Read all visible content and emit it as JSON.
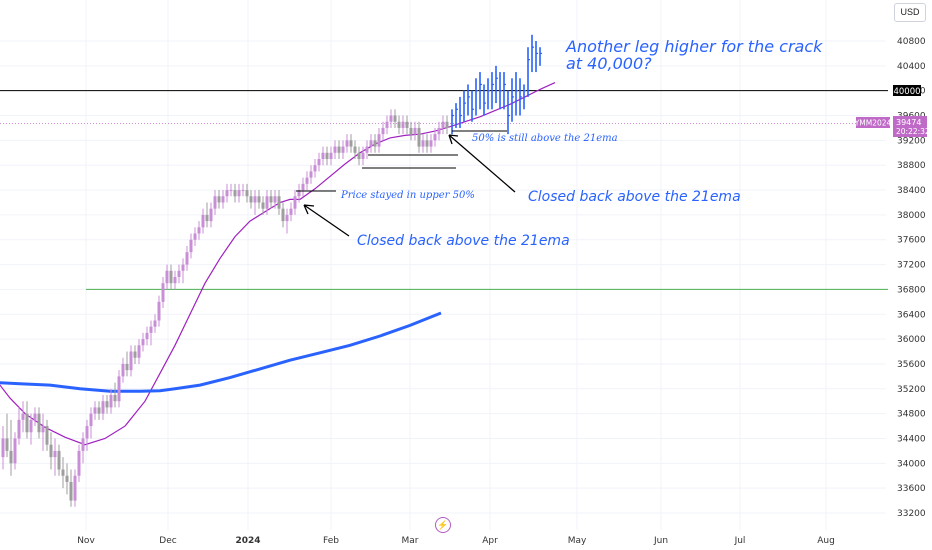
{
  "currency": "USD",
  "chart_data": {
    "type": "candlestick",
    "symbol": "YMM2024",
    "last_price": "39474",
    "countdown": "20:22:32",
    "y_ticks": [
      40800,
      40400,
      40000,
      39600,
      39200,
      38800,
      38400,
      38000,
      37600,
      37200,
      36800,
      36400,
      36000,
      35600,
      35200,
      34800,
      34400,
      34000,
      33600,
      33200
    ],
    "ylim": [
      33000,
      41200
    ],
    "x_labels": [
      "Nov",
      "Dec",
      "2024",
      "Feb",
      "Mar",
      "Apr",
      "May",
      "Jun",
      "Jul",
      "Aug"
    ],
    "bold_x_labels": [
      "2024"
    ],
    "horizontal_levels": [
      {
        "value": 40000,
        "color": "#000000",
        "label": "40000"
      },
      {
        "value": 36800,
        "color": "#4caf50",
        "label": ""
      }
    ],
    "annotations": [
      "Another leg higher for the crack",
      "at 40,000?",
      "50% is still above the 21ema",
      "Closed back above the 21ema",
      "Price stayed in upper 50%",
      "Closed back above the 21ema"
    ],
    "series": [
      {
        "name": "21ema",
        "color": "#a020c0",
        "points": [
          [
            -2,
            35300
          ],
          [
            10,
            35050
          ],
          [
            25,
            34800
          ],
          [
            45,
            34580
          ],
          [
            65,
            34420
          ],
          [
            85,
            34300
          ],
          [
            105,
            34400
          ],
          [
            125,
            34600
          ],
          [
            145,
            35000
          ],
          [
            160,
            35450
          ],
          [
            175,
            35900
          ],
          [
            190,
            36400
          ],
          [
            205,
            36900
          ],
          [
            220,
            37300
          ],
          [
            235,
            37650
          ],
          [
            250,
            37900
          ],
          [
            265,
            38050
          ],
          [
            280,
            38200
          ],
          [
            290,
            38250
          ],
          [
            300,
            38250
          ],
          [
            315,
            38420
          ],
          [
            330,
            38620
          ],
          [
            345,
            38820
          ],
          [
            360,
            39000
          ],
          [
            375,
            39140
          ],
          [
            390,
            39240
          ],
          [
            405,
            39280
          ],
          [
            420,
            39300
          ],
          [
            435,
            39350
          ],
          [
            450,
            39420
          ],
          [
            465,
            39500
          ],
          [
            480,
            39580
          ],
          [
            495,
            39680
          ],
          [
            510,
            39780
          ],
          [
            525,
            39900
          ],
          [
            540,
            40020
          ],
          [
            555,
            40130
          ]
        ]
      },
      {
        "name": "200ema",
        "color": "#2962ff",
        "points": [
          [
            -2,
            35300
          ],
          [
            20,
            35280
          ],
          [
            50,
            35260
          ],
          [
            80,
            35200
          ],
          [
            110,
            35160
          ],
          [
            140,
            35160
          ],
          [
            160,
            35170
          ],
          [
            175,
            35200
          ],
          [
            200,
            35260
          ],
          [
            230,
            35380
          ],
          [
            260,
            35520
          ],
          [
            290,
            35660
          ],
          [
            320,
            35780
          ],
          [
            350,
            35900
          ],
          [
            380,
            36050
          ],
          [
            410,
            36220
          ],
          [
            430,
            36350
          ],
          [
            441,
            36420
          ]
        ]
      }
    ],
    "candles": [
      {
        "x": 3,
        "o": 34100,
        "h": 34600,
        "l": 33900,
        "c": 34400
      },
      {
        "x": 7,
        "o": 34400,
        "h": 34800,
        "l": 34100,
        "c": 34200
      },
      {
        "x": 11,
        "o": 34200,
        "h": 34700,
        "l": 33800,
        "c": 34000
      },
      {
        "x": 15,
        "o": 34000,
        "h": 34500,
        "l": 33900,
        "c": 34400
      },
      {
        "x": 19,
        "o": 34400,
        "h": 34900,
        "l": 34300,
        "c": 34700
      },
      {
        "x": 23,
        "o": 34700,
        "h": 35000,
        "l": 34500,
        "c": 34800
      },
      {
        "x": 27,
        "o": 34800,
        "h": 35000,
        "l": 34400,
        "c": 34500
      },
      {
        "x": 31,
        "o": 34500,
        "h": 34800,
        "l": 34300,
        "c": 34700
      },
      {
        "x": 35,
        "o": 34700,
        "h": 34900,
        "l": 34600,
        "c": 34800
      },
      {
        "x": 39,
        "o": 34800,
        "h": 34900,
        "l": 34400,
        "c": 34500
      },
      {
        "x": 43,
        "o": 34500,
        "h": 34800,
        "l": 34200,
        "c": 34600
      },
      {
        "x": 47,
        "o": 34600,
        "h": 34700,
        "l": 34200,
        "c": 34300
      },
      {
        "x": 51,
        "o": 34300,
        "h": 34500,
        "l": 33900,
        "c": 34100
      },
      {
        "x": 55,
        "o": 34100,
        "h": 34400,
        "l": 33800,
        "c": 34200
      },
      {
        "x": 59,
        "o": 34200,
        "h": 34300,
        "l": 33800,
        "c": 33900
      },
      {
        "x": 63,
        "o": 33900,
        "h": 34100,
        "l": 33600,
        "c": 33800
      },
      {
        "x": 67,
        "o": 33800,
        "h": 34000,
        "l": 33500,
        "c": 33700
      },
      {
        "x": 71,
        "o": 33700,
        "h": 33900,
        "l": 33300,
        "c": 33400
      },
      {
        "x": 75,
        "o": 33400,
        "h": 33900,
        "l": 33300,
        "c": 33800
      },
      {
        "x": 79,
        "o": 33800,
        "h": 34300,
        "l": 33700,
        "c": 34200
      },
      {
        "x": 83,
        "o": 34200,
        "h": 34500,
        "l": 34000,
        "c": 34400
      },
      {
        "x": 87,
        "o": 34400,
        "h": 34700,
        "l": 34200,
        "c": 34600
      },
      {
        "x": 91,
        "o": 34600,
        "h": 34900,
        "l": 34400,
        "c": 34800
      },
      {
        "x": 95,
        "o": 34800,
        "h": 35000,
        "l": 34700,
        "c": 34900
      },
      {
        "x": 99,
        "o": 34900,
        "h": 35000,
        "l": 34700,
        "c": 34800
      },
      {
        "x": 103,
        "o": 34800,
        "h": 35100,
        "l": 34700,
        "c": 35000
      },
      {
        "x": 107,
        "o": 35000,
        "h": 35100,
        "l": 34800,
        "c": 34900
      },
      {
        "x": 111,
        "o": 34900,
        "h": 35200,
        "l": 34800,
        "c": 35100
      },
      {
        "x": 115,
        "o": 35100,
        "h": 35300,
        "l": 34900,
        "c": 35000
      },
      {
        "x": 119,
        "o": 35000,
        "h": 35500,
        "l": 34900,
        "c": 35400
      },
      {
        "x": 123,
        "o": 35400,
        "h": 35700,
        "l": 35300,
        "c": 35600
      },
      {
        "x": 127,
        "o": 35600,
        "h": 35800,
        "l": 35400,
        "c": 35500
      },
      {
        "x": 131,
        "o": 35500,
        "h": 35900,
        "l": 35400,
        "c": 35800
      },
      {
        "x": 135,
        "o": 35800,
        "h": 35900,
        "l": 35600,
        "c": 35700
      },
      {
        "x": 139,
        "o": 35700,
        "h": 36000,
        "l": 35600,
        "c": 35900
      },
      {
        "x": 143,
        "o": 35900,
        "h": 36100,
        "l": 35800,
        "c": 36000
      },
      {
        "x": 147,
        "o": 36000,
        "h": 36200,
        "l": 35900,
        "c": 36100
      },
      {
        "x": 151,
        "o": 36100,
        "h": 36300,
        "l": 35900,
        "c": 36200
      },
      {
        "x": 155,
        "o": 36200,
        "h": 36400,
        "l": 36100,
        "c": 36300
      },
      {
        "x": 159,
        "o": 36300,
        "h": 36700,
        "l": 36200,
        "c": 36600
      },
      {
        "x": 163,
        "o": 36600,
        "h": 37000,
        "l": 36500,
        "c": 36900
      },
      {
        "x": 167,
        "o": 36900,
        "h": 37200,
        "l": 36800,
        "c": 37100
      },
      {
        "x": 171,
        "o": 37100,
        "h": 37200,
        "l": 36800,
        "c": 36900
      },
      {
        "x": 175,
        "o": 36900,
        "h": 37100,
        "l": 36800,
        "c": 37000
      },
      {
        "x": 179,
        "o": 37000,
        "h": 37200,
        "l": 36900,
        "c": 37100
      },
      {
        "x": 183,
        "o": 37100,
        "h": 37300,
        "l": 36900,
        "c": 37200
      },
      {
        "x": 187,
        "o": 37200,
        "h": 37500,
        "l": 37100,
        "c": 37400
      },
      {
        "x": 191,
        "o": 37400,
        "h": 37700,
        "l": 37300,
        "c": 37600
      },
      {
        "x": 195,
        "o": 37600,
        "h": 37800,
        "l": 37500,
        "c": 37700
      },
      {
        "x": 199,
        "o": 37700,
        "h": 37900,
        "l": 37600,
        "c": 37800
      },
      {
        "x": 203,
        "o": 37800,
        "h": 38100,
        "l": 37700,
        "c": 38000
      },
      {
        "x": 207,
        "o": 38000,
        "h": 38200,
        "l": 37800,
        "c": 37900
      },
      {
        "x": 211,
        "o": 37900,
        "h": 38200,
        "l": 37800,
        "c": 38100
      },
      {
        "x": 215,
        "o": 38100,
        "h": 38400,
        "l": 38000,
        "c": 38300
      },
      {
        "x": 219,
        "o": 38300,
        "h": 38400,
        "l": 38100,
        "c": 38200
      },
      {
        "x": 223,
        "o": 38200,
        "h": 38400,
        "l": 38100,
        "c": 38300
      },
      {
        "x": 227,
        "o": 38300,
        "h": 38500,
        "l": 38200,
        "c": 38400
      },
      {
        "x": 231,
        "o": 38400,
        "h": 38500,
        "l": 38300,
        "c": 38400
      },
      {
        "x": 235,
        "o": 38400,
        "h": 38500,
        "l": 38200,
        "c": 38300
      },
      {
        "x": 239,
        "o": 38300,
        "h": 38500,
        "l": 38200,
        "c": 38400
      },
      {
        "x": 243,
        "o": 38400,
        "h": 38500,
        "l": 38300,
        "c": 38400
      },
      {
        "x": 247,
        "o": 38400,
        "h": 38500,
        "l": 38200,
        "c": 38300
      },
      {
        "x": 251,
        "o": 38300,
        "h": 38400,
        "l": 38100,
        "c": 38200
      },
      {
        "x": 255,
        "o": 38200,
        "h": 38400,
        "l": 38000,
        "c": 38300
      },
      {
        "x": 259,
        "o": 38300,
        "h": 38400,
        "l": 38100,
        "c": 38200
      },
      {
        "x": 263,
        "o": 38200,
        "h": 38300,
        "l": 38000,
        "c": 38100
      },
      {
        "x": 267,
        "o": 38100,
        "h": 38400,
        "l": 38000,
        "c": 38300
      },
      {
        "x": 271,
        "o": 38300,
        "h": 38400,
        "l": 38100,
        "c": 38200
      },
      {
        "x": 275,
        "o": 38200,
        "h": 38400,
        "l": 38100,
        "c": 38300
      },
      {
        "x": 279,
        "o": 38300,
        "h": 38400,
        "l": 38000,
        "c": 38100
      },
      {
        "x": 283,
        "o": 38100,
        "h": 38200,
        "l": 37800,
        "c": 37900
      },
      {
        "x": 287,
        "o": 37900,
        "h": 38100,
        "l": 37700,
        "c": 38000
      },
      {
        "x": 291,
        "o": 38000,
        "h": 38200,
        "l": 37900,
        "c": 38100
      },
      {
        "x": 295,
        "o": 38100,
        "h": 38400,
        "l": 38000,
        "c": 38300
      },
      {
        "x": 299,
        "o": 38300,
        "h": 38500,
        "l": 38200,
        "c": 38400
      },
      {
        "x": 303,
        "o": 38400,
        "h": 38600,
        "l": 38300,
        "c": 38500
      },
      {
        "x": 307,
        "o": 38500,
        "h": 38700,
        "l": 38400,
        "c": 38600
      },
      {
        "x": 311,
        "o": 38600,
        "h": 38800,
        "l": 38500,
        "c": 38700
      },
      {
        "x": 315,
        "o": 38700,
        "h": 38900,
        "l": 38600,
        "c": 38800
      },
      {
        "x": 319,
        "o": 38800,
        "h": 39000,
        "l": 38700,
        "c": 38900
      },
      {
        "x": 323,
        "o": 38900,
        "h": 39100,
        "l": 38800,
        "c": 39000
      },
      {
        "x": 327,
        "o": 39000,
        "h": 39100,
        "l": 38800,
        "c": 38900
      },
      {
        "x": 331,
        "o": 38900,
        "h": 39100,
        "l": 38800,
        "c": 39000
      },
      {
        "x": 335,
        "o": 39000,
        "h": 39200,
        "l": 38900,
        "c": 39100
      },
      {
        "x": 339,
        "o": 39100,
        "h": 39200,
        "l": 38900,
        "c": 39000
      },
      {
        "x": 343,
        "o": 39000,
        "h": 39200,
        "l": 38900,
        "c": 39100
      },
      {
        "x": 347,
        "o": 39100,
        "h": 39300,
        "l": 39000,
        "c": 39200
      },
      {
        "x": 351,
        "o": 39200,
        "h": 39300,
        "l": 39000,
        "c": 39100
      },
      {
        "x": 355,
        "o": 39100,
        "h": 39200,
        "l": 38900,
        "c": 39000
      },
      {
        "x": 359,
        "o": 39000,
        "h": 39100,
        "l": 38800,
        "c": 38900
      },
      {
        "x": 363,
        "o": 38900,
        "h": 39100,
        "l": 38800,
        "c": 39000
      },
      {
        "x": 367,
        "o": 39000,
        "h": 39200,
        "l": 38900,
        "c": 39100
      },
      {
        "x": 371,
        "o": 39100,
        "h": 39300,
        "l": 39000,
        "c": 39200
      },
      {
        "x": 375,
        "o": 39200,
        "h": 39300,
        "l": 39000,
        "c": 39100
      },
      {
        "x": 379,
        "o": 39100,
        "h": 39400,
        "l": 39000,
        "c": 39300
      },
      {
        "x": 383,
        "o": 39300,
        "h": 39500,
        "l": 39200,
        "c": 39400
      },
      {
        "x": 387,
        "o": 39400,
        "h": 39600,
        "l": 39300,
        "c": 39500
      },
      {
        "x": 391,
        "o": 39500,
        "h": 39700,
        "l": 39400,
        "c": 39600
      },
      {
        "x": 395,
        "o": 39600,
        "h": 39700,
        "l": 39400,
        "c": 39500
      },
      {
        "x": 399,
        "o": 39500,
        "h": 39600,
        "l": 39300,
        "c": 39400
      },
      {
        "x": 403,
        "o": 39400,
        "h": 39600,
        "l": 39300,
        "c": 39500
      },
      {
        "x": 407,
        "o": 39500,
        "h": 39600,
        "l": 39300,
        "c": 39400
      },
      {
        "x": 411,
        "o": 39400,
        "h": 39500,
        "l": 39200,
        "c": 39300
      },
      {
        "x": 415,
        "o": 39300,
        "h": 39500,
        "l": 39200,
        "c": 39400
      },
      {
        "x": 419,
        "o": 39400,
        "h": 39500,
        "l": 39000,
        "c": 39100
      },
      {
        "x": 423,
        "o": 39100,
        "h": 39300,
        "l": 39000,
        "c": 39200
      },
      {
        "x": 427,
        "o": 39200,
        "h": 39300,
        "l": 39000,
        "c": 39100
      },
      {
        "x": 431,
        "o": 39100,
        "h": 39300,
        "l": 39000,
        "c": 39200
      },
      {
        "x": 435,
        "o": 39200,
        "h": 39400,
        "l": 39100,
        "c": 39300
      },
      {
        "x": 439,
        "o": 39300,
        "h": 39500,
        "l": 39200,
        "c": 39400
      },
      {
        "x": 443,
        "o": 39400,
        "h": 39600,
        "l": 39300,
        "c": 39500
      },
      {
        "x": 447,
        "o": 39500,
        "h": 39600,
        "l": 39300,
        "c": 39400
      }
    ],
    "bars": [
      {
        "x": 452,
        "h": 39700,
        "l": 39300,
        "c": 39600
      },
      {
        "x": 456,
        "h": 39800,
        "l": 39400,
        "c": 39700
      },
      {
        "x": 460,
        "h": 39900,
        "l": 39400,
        "c": 39600
      },
      {
        "x": 464,
        "h": 40000,
        "l": 39500,
        "c": 39800
      },
      {
        "x": 468,
        "h": 40100,
        "l": 39600,
        "c": 39900
      },
      {
        "x": 472,
        "h": 40000,
        "l": 39500,
        "c": 39700
      },
      {
        "x": 476,
        "h": 40200,
        "l": 39600,
        "c": 40000
      },
      {
        "x": 480,
        "h": 40300,
        "l": 39700,
        "c": 40100
      },
      {
        "x": 484,
        "h": 40100,
        "l": 39600,
        "c": 39800
      },
      {
        "x": 488,
        "h": 40200,
        "l": 39700,
        "c": 40000
      },
      {
        "x": 492,
        "h": 40300,
        "l": 39700,
        "c": 40100
      },
      {
        "x": 496,
        "h": 40400,
        "l": 39800,
        "c": 40200
      },
      {
        "x": 500,
        "h": 40300,
        "l": 39700,
        "c": 40000
      },
      {
        "x": 504,
        "h": 40300,
        "l": 39700,
        "c": 40100
      },
      {
        "x": 508,
        "h": 40000,
        "l": 39300,
        "c": 39600
      },
      {
        "x": 512,
        "h": 40200,
        "l": 39500,
        "c": 39900
      },
      {
        "x": 516,
        "h": 40300,
        "l": 39600,
        "c": 40000
      },
      {
        "x": 520,
        "h": 40200,
        "l": 39600,
        "c": 39900
      },
      {
        "x": 524,
        "h": 40100,
        "l": 39700,
        "c": 40000
      },
      {
        "x": 528,
        "h": 40700,
        "l": 39900,
        "c": 40500
      },
      {
        "x": 532,
        "h": 40900,
        "l": 40300,
        "c": 40700
      },
      {
        "x": 536,
        "h": 40800,
        "l": 40300,
        "c": 40600
      },
      {
        "x": 540,
        "h": 40700,
        "l": 40400,
        "c": 40600
      }
    ]
  }
}
